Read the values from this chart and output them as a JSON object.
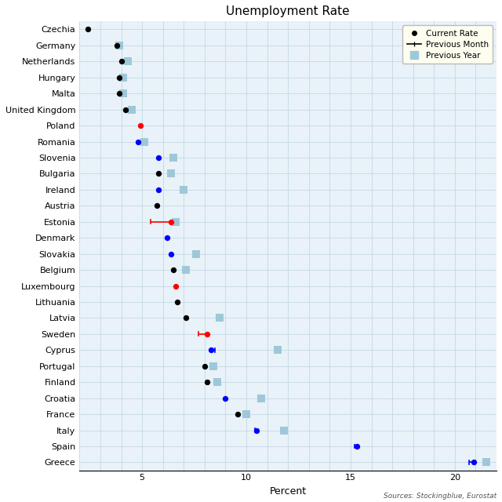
{
  "title": "Unemployment Rate",
  "xlabel": "Percent",
  "source": "Sources: Stockingblue, Eurostat",
  "countries": [
    "Czechia",
    "Germany",
    "Netherlands",
    "Hungary",
    "Malta",
    "United Kingdom",
    "Poland",
    "Romania",
    "Slovenia",
    "Bulgaria",
    "Ireland",
    "Austria",
    "Estonia",
    "Denmark",
    "Slovakia",
    "Belgium",
    "Luxembourg",
    "Lithuania",
    "Latvia",
    "Sweden",
    "Cyprus",
    "Portugal",
    "Finland",
    "Croatia",
    "France",
    "Italy",
    "Spain",
    "Greece"
  ],
  "current_rate": [
    2.4,
    3.8,
    4.0,
    3.9,
    3.9,
    4.2,
    4.9,
    4.8,
    5.8,
    5.8,
    5.8,
    5.7,
    6.4,
    6.2,
    6.4,
    6.5,
    6.6,
    6.7,
    7.1,
    8.1,
    8.3,
    8.0,
    8.1,
    9.0,
    9.6,
    10.5,
    15.3,
    20.9
  ],
  "current_color": [
    "black",
    "black",
    "black",
    "black",
    "black",
    "black",
    "red",
    "blue",
    "blue",
    "black",
    "blue",
    "black",
    "red",
    "blue",
    "blue",
    "black",
    "red",
    "black",
    "black",
    "red",
    "blue",
    "black",
    "black",
    "blue",
    "black",
    "blue",
    "blue",
    "blue"
  ],
  "prev_month": [
    null,
    null,
    null,
    null,
    null,
    null,
    null,
    null,
    null,
    null,
    null,
    null,
    5.4,
    null,
    null,
    null,
    null,
    null,
    null,
    7.7,
    8.5,
    null,
    null,
    null,
    null,
    10.4,
    15.2,
    20.7
  ],
  "prev_year": [
    null,
    3.9,
    4.3,
    4.1,
    4.1,
    4.5,
    null,
    5.1,
    6.5,
    6.4,
    7.0,
    null,
    6.6,
    null,
    7.6,
    7.1,
    null,
    null,
    8.7,
    null,
    11.5,
    8.4,
    8.6,
    10.7,
    10.0,
    11.8,
    null,
    21.5
  ],
  "xlim": [
    2,
    22
  ],
  "xlim_plot": [
    2,
    22
  ],
  "xticks": [
    5,
    10,
    15,
    20
  ],
  "bg_color": "#e8f2f8",
  "grid_color": "#c5d8e5",
  "prev_year_color": "#9ec8d8",
  "legend_bg": "#fefef0",
  "figsize": [
    6.4,
    6.4
  ],
  "dpi": 100
}
